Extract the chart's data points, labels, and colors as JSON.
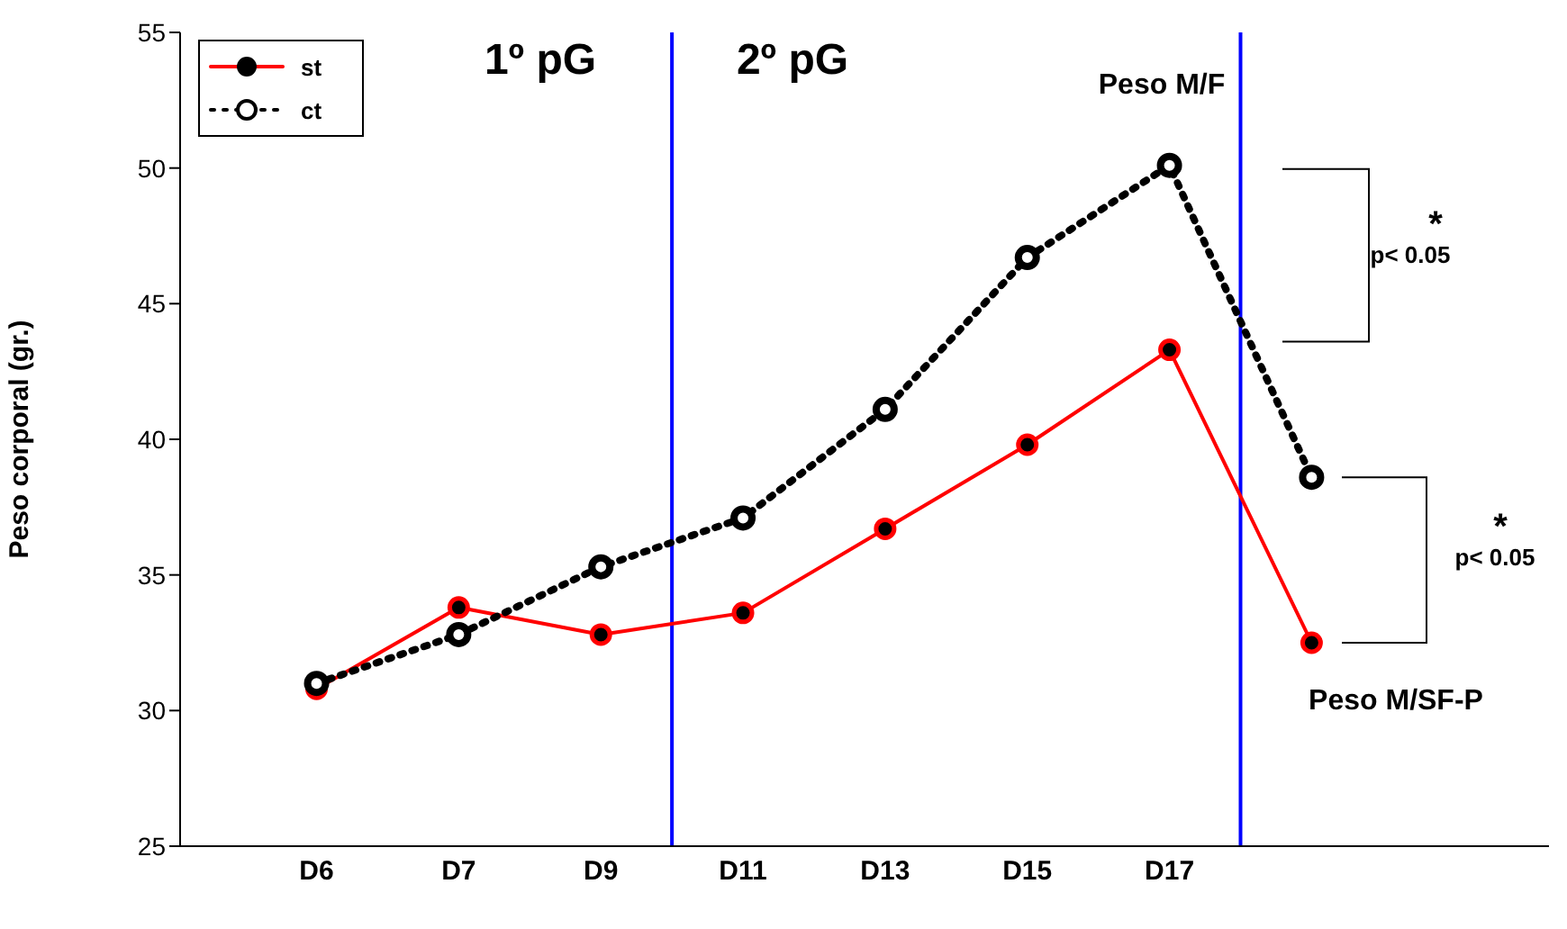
{
  "chart_data": {
    "type": "line",
    "ylabel": "Peso corporal (gr.)",
    "categories": [
      "D6",
      "D7",
      "D9",
      "D11",
      "D13",
      "D15",
      "D17",
      null
    ],
    "series": [
      {
        "name": "st",
        "color": "#ff0000",
        "line_style": "solid",
        "values": [
          30.8,
          33.8,
          32.8,
          33.6,
          36.7,
          39.8,
          43.3,
          32.5
        ]
      },
      {
        "name": "ct",
        "color": "#000000",
        "line_style": "dotted",
        "values": [
          31.0,
          32.8,
          35.3,
          37.1,
          41.1,
          46.7,
          50.1,
          38.6
        ]
      }
    ],
    "ylim": [
      25,
      55
    ],
    "yticks": [
      25,
      30,
      35,
      40,
      45,
      50,
      55
    ],
    "grid": false,
    "legend": "top left",
    "marker": "circle",
    "annotations": [
      "1º pG",
      "2º pG",
      "Peso M/F",
      "*",
      "p< 0.05",
      "*",
      "p< 0.05",
      "Peso M/SF-P"
    ]
  }
}
